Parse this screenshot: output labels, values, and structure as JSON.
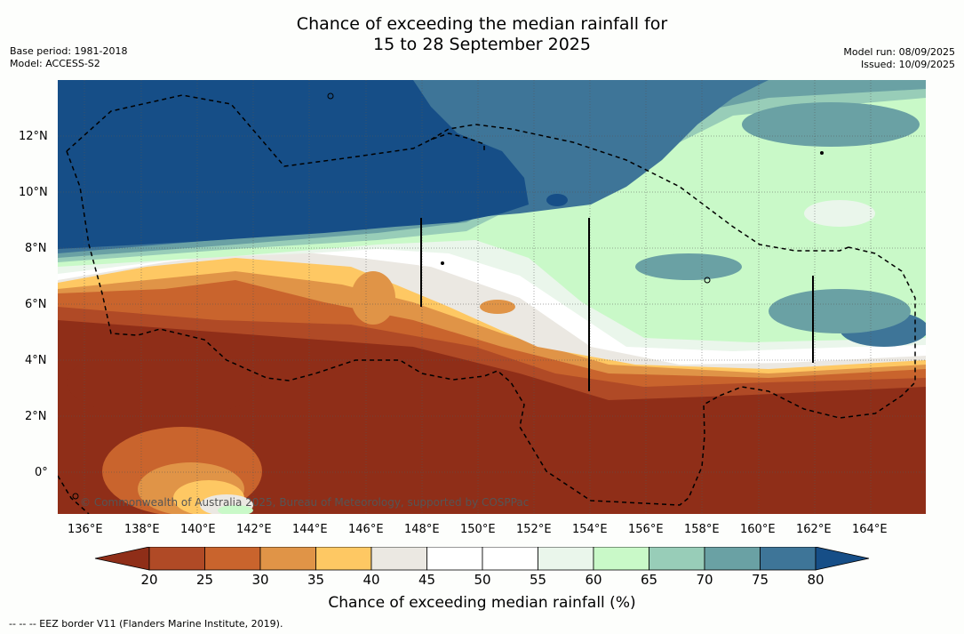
{
  "title": {
    "line1": "Chance of exceeding the median rainfall for",
    "line2": "15 to 28 September 2025"
  },
  "meta": {
    "base_period": "Base period: 1981-2018",
    "model": "Model: ACCESS-S2",
    "model_run": "Model run: 08/09/2025",
    "issued": "Issued: 10/09/2025"
  },
  "map": {
    "lon_labels": [
      "136°E",
      "138°E",
      "140°E",
      "142°E",
      "144°E",
      "146°E",
      "148°E",
      "150°E",
      "152°E",
      "154°E",
      "156°E",
      "158°E",
      "160°E",
      "162°E",
      "164°E"
    ],
    "lat_labels": [
      "12°N",
      "10°N",
      "8°N",
      "6°N",
      "4°N",
      "2°N",
      "0°"
    ],
    "credit": "© Commonwealth of Australia 2025, Bureau of Meteorology, supported by COSPPac"
  },
  "colorbar": {
    "labels": [
      "20",
      "25",
      "30",
      "35",
      "40",
      "45",
      "50",
      "55",
      "60",
      "65",
      "70",
      "75",
      "80"
    ],
    "colors": [
      "#8f2e18",
      "#b04a26",
      "#c9642d",
      "#e09447",
      "#fec863",
      "#ebe8e2",
      "#ffffff",
      "#ffffff",
      "#eaf6eb",
      "#c9f9c8",
      "#98cdb8",
      "#6aa1a4",
      "#3e7598"
    ],
    "under_color": "#8f2e18",
    "over_color": "#164e87",
    "title": "Chance of exceeding median rainfall (%)"
  },
  "footnote": "--  --  -- EEZ border V11 (Flanders Marine Institute, 2019)."
}
